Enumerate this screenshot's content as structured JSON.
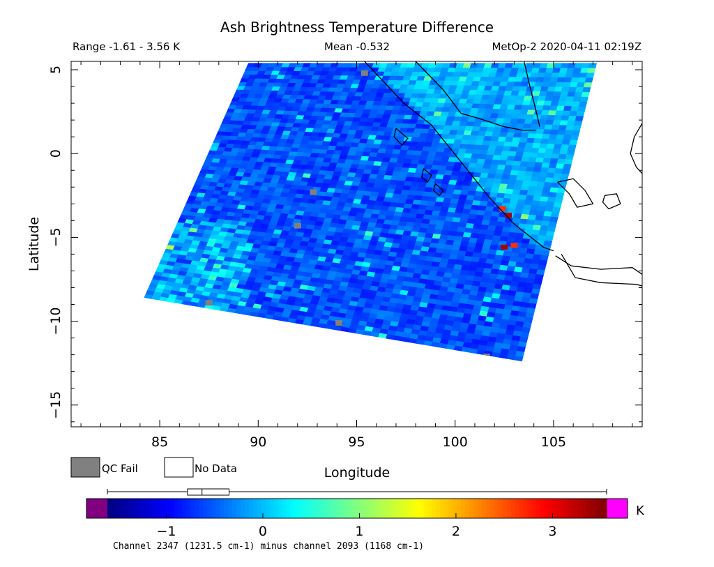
{
  "chart_data": {
    "type": "heatmap",
    "title": "Ash Brightness Temperature Difference",
    "header": {
      "range": "Range -1.61 - 3.56 K",
      "mean": "Mean -0.532",
      "source": "MetOp-2 2020-04-11 02:19Z"
    },
    "xlabel": "Longitude",
    "ylabel": "Latitude",
    "xlim": [
      80.5,
      109.5
    ],
    "ylim": [
      -16.3,
      5.5
    ],
    "xticks": [
      85,
      90,
      95,
      100,
      105
    ],
    "yticks": [
      5,
      0,
      -5,
      -10,
      -15
    ],
    "swath_corners": [
      [
        84.2,
        -8.6
      ],
      [
        89.5,
        5.4
      ],
      [
        107.2,
        5.4
      ],
      [
        103.4,
        -12.4
      ]
    ],
    "coastlines": [
      [
        [
          95.4,
          5.5
        ],
        [
          97.4,
          3.0
        ],
        [
          98.8,
          1.7
        ],
        [
          100.3,
          -0.5
        ],
        [
          101.8,
          -2.7
        ],
        [
          103.0,
          -4.2
        ],
        [
          104.5,
          -5.6
        ],
        [
          105.0,
          -5.8
        ]
      ],
      [
        [
          98.0,
          5.5
        ],
        [
          99.4,
          3.8
        ],
        [
          100.3,
          2.4
        ],
        [
          101.2,
          2.1
        ],
        [
          102.5,
          1.6
        ],
        [
          103.4,
          1.4
        ],
        [
          104.1,
          1.4
        ]
      ],
      [
        [
          103.5,
          5.5
        ],
        [
          103.8,
          4.0
        ],
        [
          104.1,
          2.6
        ],
        [
          104.3,
          1.6
        ]
      ],
      [
        [
          105.1,
          -6.1
        ],
        [
          105.9,
          -6.7
        ],
        [
          107.4,
          -6.9
        ],
        [
          109.0,
          -6.8
        ],
        [
          109.5,
          -7.2
        ]
      ],
      [
        [
          105.4,
          -6.0
        ],
        [
          106.1,
          -7.4
        ],
        [
          107.4,
          -7.7
        ],
        [
          109.2,
          -7.8
        ],
        [
          109.5,
          -7.9
        ]
      ],
      [
        [
          105.2,
          -1.7
        ],
        [
          106.0,
          -1.5
        ],
        [
          106.6,
          -2.2
        ],
        [
          107.0,
          -3.0
        ],
        [
          106.2,
          -3.2
        ],
        [
          105.8,
          -2.4
        ],
        [
          105.2,
          -1.7
        ]
      ],
      [
        [
          107.6,
          -2.5
        ],
        [
          108.2,
          -2.4
        ],
        [
          108.4,
          -3.0
        ],
        [
          107.8,
          -3.3
        ],
        [
          107.5,
          -2.9
        ],
        [
          107.6,
          -2.5
        ]
      ],
      [
        [
          109.5,
          1.8
        ],
        [
          109.1,
          1.0
        ],
        [
          108.9,
          0.0
        ],
        [
          109.2,
          -0.8
        ],
        [
          109.5,
          -1.2
        ]
      ]
    ],
    "islands": [
      [
        [
          97.0,
          1.5
        ],
        [
          97.6,
          0.9
        ],
        [
          97.3,
          0.5
        ],
        [
          96.9,
          1.0
        ],
        [
          97.0,
          1.5
        ]
      ],
      [
        [
          98.4,
          -0.9
        ],
        [
          98.8,
          -1.3
        ],
        [
          98.6,
          -1.7
        ],
        [
          98.3,
          -1.4
        ],
        [
          98.4,
          -0.9
        ]
      ],
      [
        [
          99.0,
          -1.8
        ],
        [
          99.4,
          -2.2
        ],
        [
          99.2,
          -2.5
        ],
        [
          98.9,
          -2.2
        ],
        [
          99.0,
          -1.8
        ]
      ]
    ],
    "qc_fail_pixels": [
      [
        92.8,
        -2.3
      ],
      [
        101.6,
        -12.1
      ],
      [
        95.4,
        4.8
      ],
      [
        92.0,
        -4.3
      ],
      [
        94.1,
        -10.1
      ],
      [
        87.5,
        -8.9
      ]
    ],
    "hot_pixels": [
      [
        102.4,
        -3.3
      ],
      [
        102.7,
        -3.7
      ],
      [
        103.0,
        -5.5
      ],
      [
        102.5,
        -5.6
      ]
    ],
    "colorbar": {
      "min": -1.61,
      "max": 3.56,
      "ticks": [
        -1,
        0,
        1,
        2,
        3
      ],
      "unit": "K",
      "colors": [
        "#00007f",
        "#0000ff",
        "#0080ff",
        "#00ffff",
        "#80ff80",
        "#ffff00",
        "#ff8000",
        "#ff0000",
        "#7f0000"
      ],
      "under_color": "#800080",
      "over_color": "#ff00ff",
      "box": {
        "whisker_low": -1.61,
        "q1": -0.78,
        "median": -0.63,
        "q3": -0.35,
        "whisker_high": 3.56
      },
      "caption": "Channel 2347 (1231.5 cm-1) minus channel 2093 (1168 cm-1)"
    },
    "legend": [
      {
        "label": "QC Fail",
        "color": "#808080"
      },
      {
        "label": "No Data",
        "color": "#ffffff"
      }
    ],
    "grid": false
  }
}
